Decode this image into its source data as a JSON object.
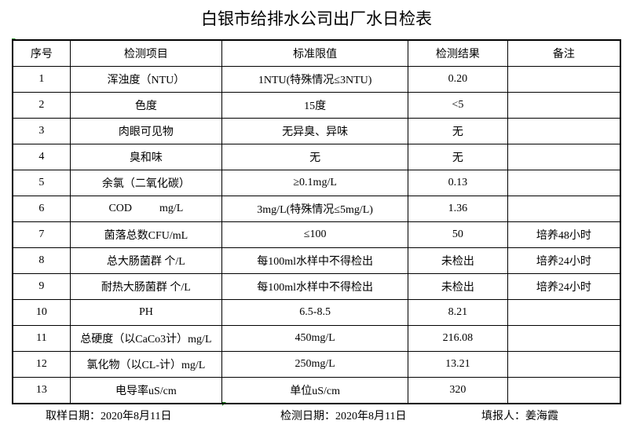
{
  "title": "白银市给排水公司出厂水日检表",
  "headers": [
    "序号",
    "检测项目",
    "标准限值",
    "检测结果",
    "备注"
  ],
  "rows": [
    [
      "1",
      "浑浊度（NTU）",
      "1NTU(特殊情况≤3NTU)",
      "0.20",
      ""
    ],
    [
      "2",
      "色度",
      "15度",
      "<5",
      ""
    ],
    [
      "3",
      "肉眼可见物",
      "无异臭、异味",
      "无",
      ""
    ],
    [
      "4",
      "臭和味",
      "无",
      "无",
      ""
    ],
    [
      "5",
      "余氯（二氧化碳）",
      "≥0.1mg/L",
      "0.13",
      ""
    ],
    [
      "6",
      "COD          mg/L",
      "3mg/L(特殊情况≤5mg/L)",
      "1.36",
      ""
    ],
    [
      "7",
      "菌落总数CFU/mL",
      "≤100",
      "50",
      "培养48小时"
    ],
    [
      "8",
      "总大肠菌群 个/L",
      "每100ml水样中不得检出",
      "未检出",
      "培养24小时"
    ],
    [
      "9",
      "耐热大肠菌群 个/L",
      "每100ml水样中不得检出",
      "未检出",
      "培养24小时"
    ],
    [
      "10",
      "PH",
      "6.5-8.5",
      "8.21",
      ""
    ],
    [
      "11",
      "总硬度（以CaCo3计）mg/L",
      "450mg/L",
      "216.08",
      ""
    ],
    [
      "12",
      "氯化物（以CL-计）mg/L",
      "250mg/L",
      "13.21",
      ""
    ],
    [
      "13",
      "电导率uS/cm",
      "单位uS/cm",
      "320",
      ""
    ]
  ],
  "footer": {
    "sampling_date": "取样日期：2020年8月11日",
    "test_date": "检测日期：2020年8月11日",
    "reporter": "填报人：姜海霞"
  }
}
